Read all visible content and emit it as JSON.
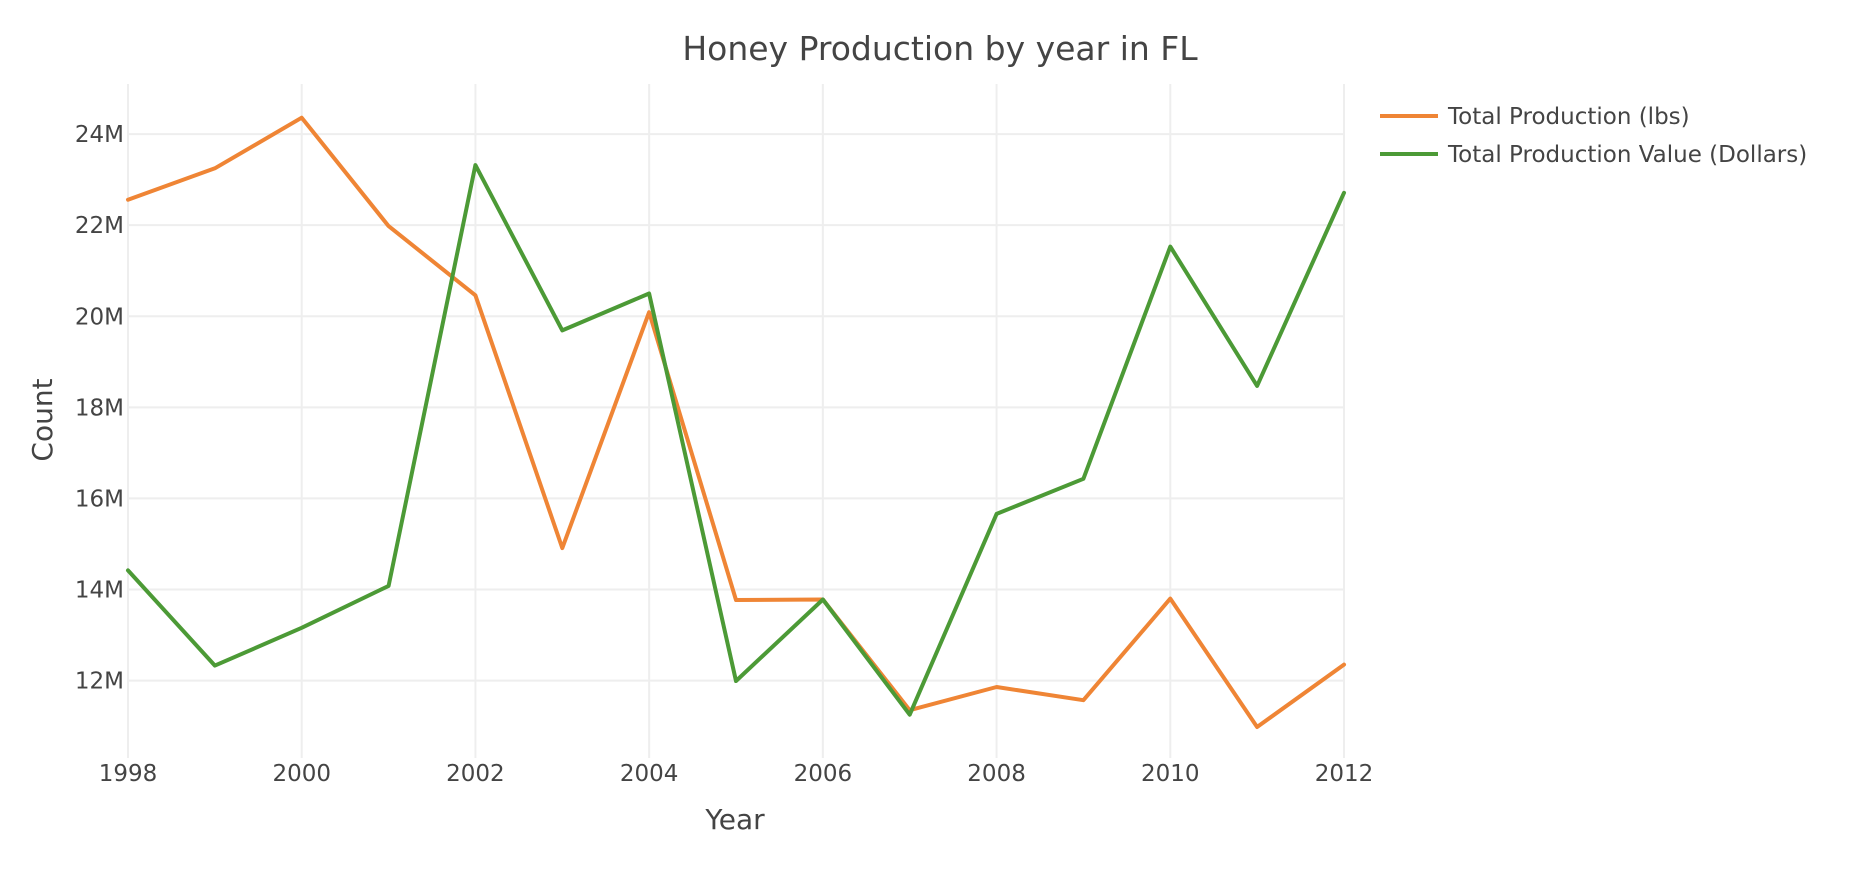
{
  "chart_data": {
    "type": "line",
    "title": "Honey Production by year in FL",
    "xlabel": "Year",
    "ylabel": "Count",
    "x": [
      1998,
      1999,
      2000,
      2001,
      2002,
      2003,
      2004,
      2005,
      2006,
      2007,
      2008,
      2009,
      2010,
      2011,
      2012
    ],
    "x_ticks": [
      1998,
      2000,
      2002,
      2004,
      2006,
      2008,
      2010,
      2012
    ],
    "x_tick_labels": [
      "1998",
      "2000",
      "2002",
      "2004",
      "2006",
      "2008",
      "2010",
      "2012"
    ],
    "y_ticks": [
      12000000,
      14000000,
      16000000,
      18000000,
      20000000,
      22000000,
      24000000
    ],
    "y_tick_labels": [
      "12M",
      "14M",
      "16M",
      "18M",
      "20M",
      "22M",
      "24M"
    ],
    "xlim": [
      1998,
      2012
    ],
    "ylim": [
      10300000,
      25100000
    ],
    "grid": true,
    "legend_position": "top-right",
    "series": [
      {
        "name": "Total Production (lbs)",
        "color": "#ef8535",
        "values": [
          22560000,
          23250000,
          24360000,
          21980000,
          20460000,
          14910000,
          20090000,
          13770000,
          13780000,
          11350000,
          11860000,
          11570000,
          13800000,
          10980000,
          12350000
        ]
      },
      {
        "name": "Total Production Value (Dollars)",
        "color": "#4c9a36",
        "values": [
          14420000,
          12330000,
          13160000,
          14080000,
          23320000,
          19690000,
          20500000,
          11990000,
          13780000,
          11250000,
          15660000,
          16430000,
          21530000,
          18470000,
          22710000
        ]
      }
    ]
  }
}
